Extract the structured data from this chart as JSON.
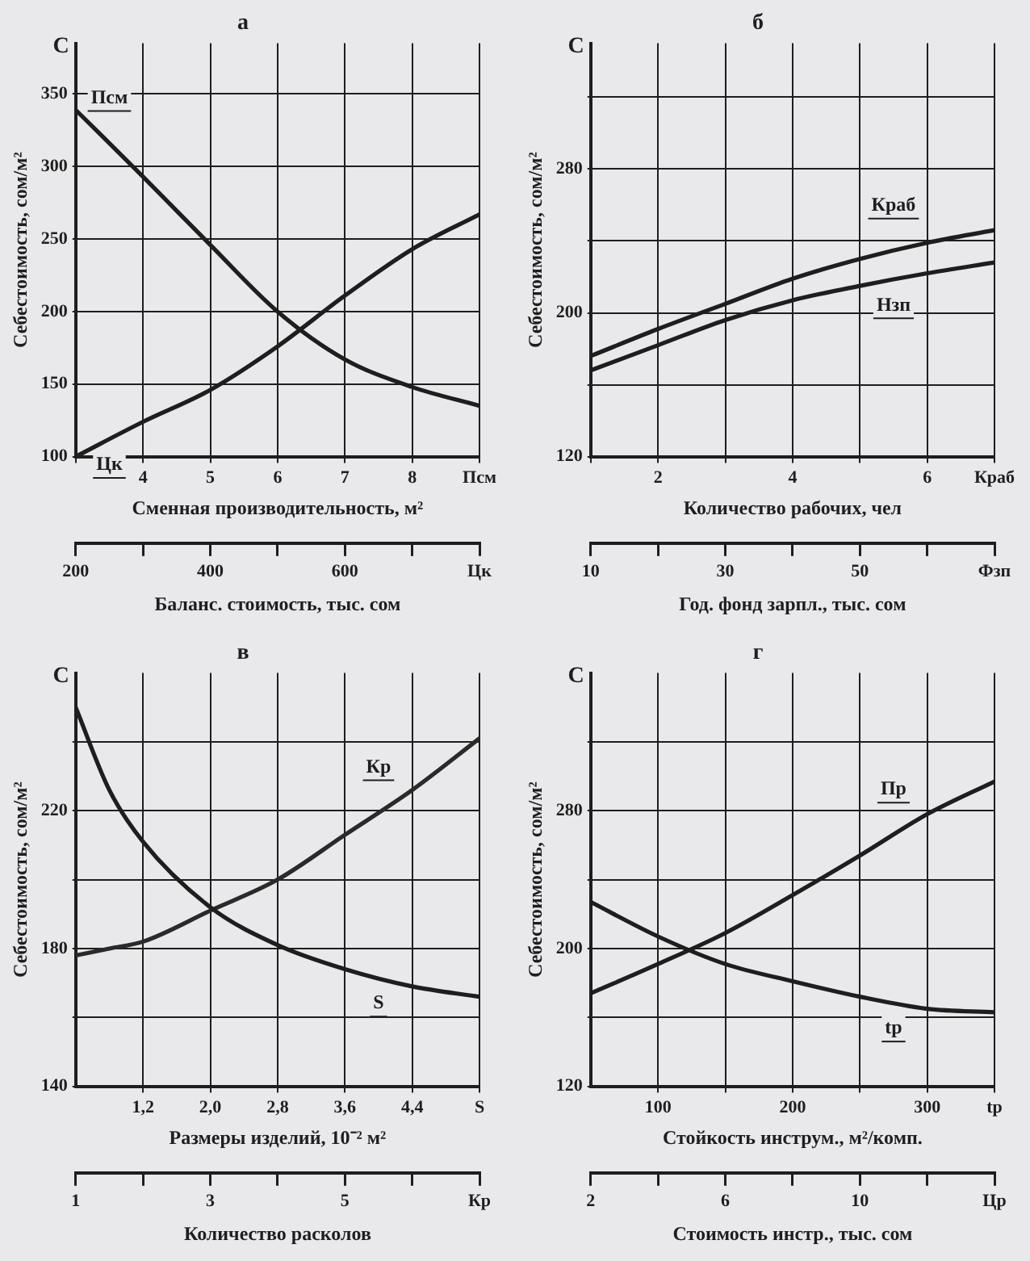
{
  "chart_data": [
    {
      "type": "line",
      "title": "а",
      "xlabel": "Сменная производительность, м²",
      "x2label": "Баланс. стоимость, тыс. сом",
      "ylabel": "Себестоимость, сом/м²",
      "x": [
        3,
        4,
        5,
        6,
        7,
        8,
        9
      ],
      "series": [
        {
          "name": "Псм",
          "color": "#1e1e1e",
          "values": [
            339,
            293,
            246,
            200,
            167,
            148,
            135
          ]
        },
        {
          "name": "Цк",
          "color": "#1e1e1e",
          "values": [
            100,
            124,
            146,
            176,
            211,
            243,
            267
          ]
        }
      ],
      "xlim": [
        3,
        9
      ],
      "xticks": [
        {
          "value": 3,
          "label": null
        },
        4,
        5,
        6,
        7,
        8,
        {
          "value": 9,
          "label": "Псм"
        }
      ],
      "x2lim": [
        200,
        800
      ],
      "x2ticks": [
        200,
        {
          "value": 300,
          "label": null
        },
        400,
        {
          "value": 500,
          "label": null
        },
        600,
        {
          "value": 700,
          "label": null
        },
        {
          "value": 800,
          "label": "Цк"
        }
      ],
      "ylim": [
        100,
        385
      ],
      "yticks": [
        100,
        150,
        200,
        250,
        300,
        350
      ],
      "annotations": [
        "C"
      ],
      "grid": true,
      "marker": "none",
      "line_style": "solid"
    },
    {
      "type": "line",
      "title": "б",
      "xlabel": "Количество рабочих, чел",
      "x2label": "Год. фонд зарпл., тыс. сом",
      "ylabel": "Себестоимость, сом/м²",
      "x": [
        1,
        2,
        3,
        4,
        5,
        6,
        7
      ],
      "series": [
        {
          "name": "Краб",
          "color": "#1e1e1e",
          "values": [
            176,
            191,
            205,
            219,
            230,
            239,
            246
          ]
        },
        {
          "name": "Нзп",
          "color": "#1e1e1e",
          "values": [
            168,
            182,
            196,
            207,
            215,
            222,
            228
          ]
        }
      ],
      "xlim": [
        1,
        7
      ],
      "xticks": [
        {
          "value": 1,
          "label": null
        },
        2,
        {
          "value": 3,
          "label": null
        },
        4,
        {
          "value": 5,
          "label": null
        },
        6,
        {
          "value": 7,
          "label": "Краб"
        }
      ],
      "x2lim": [
        10,
        70
      ],
      "x2ticks": [
        10,
        {
          "value": 20,
          "label": null
        },
        30,
        {
          "value": 40,
          "label": null
        },
        50,
        {
          "value": 60,
          "label": null
        },
        {
          "value": 70,
          "label": "Фзп"
        }
      ],
      "ylim": [
        120,
        350
      ],
      "yticks": [
        120,
        {
          "value": 160,
          "label": null
        },
        200,
        {
          "value": 240,
          "label": null
        },
        280,
        {
          "value": 320,
          "label": null
        }
      ],
      "annotations": [
        "C"
      ],
      "grid": true,
      "marker": "none",
      "line_style": "solid"
    },
    {
      "type": "line",
      "title": "в",
      "xlabel": "Размеры изделий, 10⁻² м²",
      "x2label": "Количество расколов",
      "ylabel": "Себестоимость, сом/м²",
      "x": [
        0.4,
        0.8,
        1.2,
        2.0,
        2.8,
        3.6,
        4.4,
        5.2
      ],
      "series": [
        {
          "name": "S",
          "color": "#1e1e1e",
          "values": [
            250,
            226,
            211,
            192,
            181,
            174,
            169,
            166
          ]
        },
        {
          "name": "Кр",
          "color": "#2a2a2a",
          "values": [
            178,
            180,
            182,
            191,
            200,
            213,
            226,
            241
          ]
        }
      ],
      "xlim": [
        0.4,
        5.2
      ],
      "xticks": [
        {
          "value": 1.2,
          "label": "1,2"
        },
        {
          "value": 2.0,
          "label": "2,0"
        },
        {
          "value": 2.8,
          "label": "2,8"
        },
        {
          "value": 3.6,
          "label": "3,6"
        },
        {
          "value": 4.4,
          "label": "4,4"
        },
        {
          "value": 5.2,
          "label": "S"
        }
      ],
      "x2lim": [
        1,
        7
      ],
      "x2ticks": [
        1,
        {
          "value": 2,
          "label": null
        },
        3,
        {
          "value": 4,
          "label": null
        },
        5,
        {
          "value": 6,
          "label": null
        },
        {
          "value": 7,
          "label": "Кр"
        }
      ],
      "ylim": [
        140,
        260
      ],
      "yticks": [
        140,
        {
          "value": 160,
          "label": null
        },
        180,
        {
          "value": 200,
          "label": null
        },
        220,
        {
          "value": 240,
          "label": null
        }
      ],
      "annotations": [
        "C"
      ],
      "grid": true,
      "marker": "none",
      "line_style": "solid"
    },
    {
      "type": "line",
      "title": "г",
      "xlabel": "Стойкость инструм., м²/комп.",
      "x2label": "Стоимость инстр., тыс. сом",
      "ylabel": "Себестоимость, сом/м²",
      "x": [
        50,
        100,
        150,
        200,
        250,
        300,
        350
      ],
      "series": [
        {
          "name": "Пр",
          "color": "#1e1e1e",
          "values": [
            174,
            191,
            209,
            231,
            254,
            278,
            297
          ]
        },
        {
          "name": "tр",
          "color": "#1e1e1e",
          "values": [
            227,
            207,
            191,
            181,
            172,
            165,
            163
          ]
        }
      ],
      "xlim": [
        50,
        350
      ],
      "xticks": [
        100,
        {
          "value": 150,
          "label": null
        },
        200,
        {
          "value": 250,
          "label": null
        },
        300,
        {
          "value": 350,
          "label": "tр"
        }
      ],
      "x2lim": [
        2,
        14
      ],
      "x2ticks": [
        2,
        {
          "value": 4,
          "label": null
        },
        6,
        {
          "value": 8,
          "label": null
        },
        10,
        {
          "value": 12,
          "label": null
        },
        {
          "value": 14,
          "label": "Цр"
        }
      ],
      "ylim": [
        120,
        360
      ],
      "yticks": [
        120,
        {
          "value": 160,
          "label": null
        },
        200,
        {
          "value": 240,
          "label": null
        },
        280,
        {
          "value": 320,
          "label": null
        }
      ],
      "annotations": [
        "C"
      ],
      "grid": true,
      "marker": "none",
      "line_style": "solid"
    }
  ]
}
